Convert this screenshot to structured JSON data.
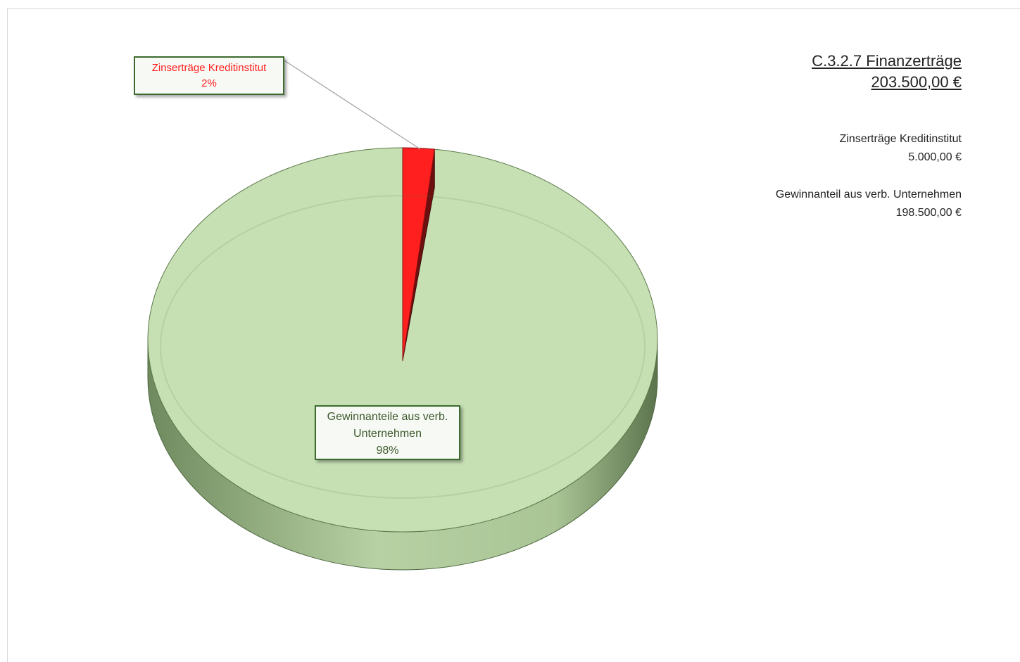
{
  "chart_data": {
    "type": "pie",
    "categories": [
      "Zinserträge Kreditinstitut",
      "Gewinnanteile aus verb. Unternehmen"
    ],
    "values": [
      2,
      98
    ],
    "value_labels": [
      "2%",
      "98%"
    ],
    "colors": [
      "#ff1f1f",
      "#c6e0b4"
    ]
  },
  "summary": {
    "title": "C.3.2.7 Finanzerträge",
    "total": "203.500,00 €",
    "items": [
      {
        "name": "Zinserträge Kreditinstitut",
        "amount": "5.000,00 €"
      },
      {
        "name": "Gewinnanteil aus verb. Unternehmen",
        "amount": "198.500,00 €"
      }
    ]
  }
}
